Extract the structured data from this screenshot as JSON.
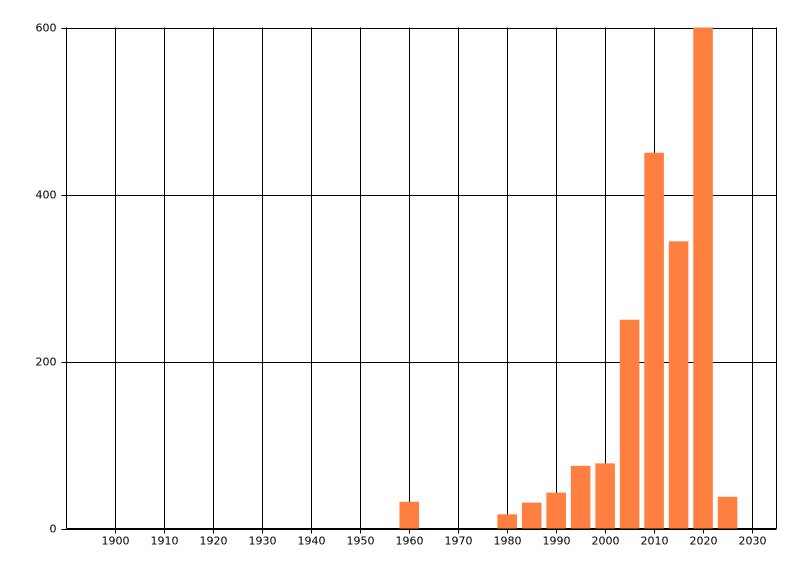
{
  "chart_data": {
    "type": "bar",
    "x": [
      1960,
      1980,
      1985,
      1990,
      1995,
      2000,
      2005,
      2010,
      2015,
      2020,
      2025
    ],
    "values": [
      32,
      17,
      31,
      43,
      75,
      78,
      250,
      450,
      344,
      600,
      38
    ],
    "color": "#ff7f40",
    "xlim": [
      1890,
      2035
    ],
    "xticks": [
      1900,
      1910,
      1920,
      1930,
      1940,
      1950,
      1960,
      1970,
      1980,
      1990,
      2000,
      2010,
      2020,
      2030
    ],
    "ylim": [
      0,
      600
    ],
    "yticks": [
      0,
      200,
      400,
      600
    ],
    "grid": true
  }
}
